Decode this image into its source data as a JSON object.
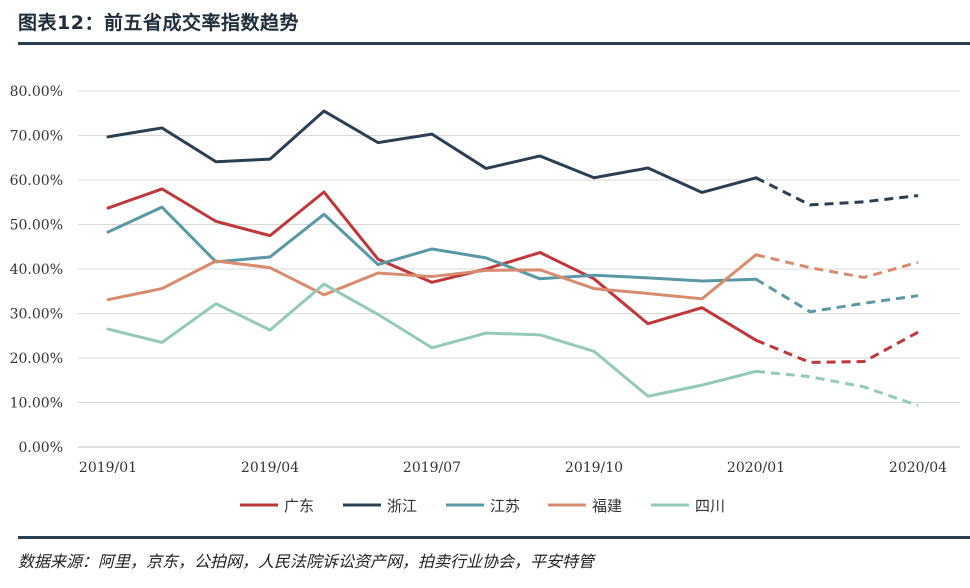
{
  "figure": {
    "title": "图表12：前五省成交率指数趋势",
    "source": "数据来源：阿里，京东，公拍网，人民法院诉讼资产网，拍卖行业协会，平安特管"
  },
  "colors": {
    "rule": "#2b3f52",
    "grid": "#d9d9d9"
  },
  "chart_data": {
    "type": "line",
    "ylim": [
      0,
      0.8
    ],
    "y_ticks": [
      "0.00%",
      "10.00%",
      "20.00%",
      "30.00%",
      "40.00%",
      "50.00%",
      "60.00%",
      "70.00%",
      "80.00%"
    ],
    "x": [
      "2019/01",
      "2019/02",
      "2019/03",
      "2019/04",
      "2019/05",
      "2019/06",
      "2019/07",
      "2019/08",
      "2019/09",
      "2019/10",
      "2019/11",
      "2019/12",
      "2020/01",
      "2020/02",
      "2020/03",
      "2020/04"
    ],
    "x_tick_labels": [
      "2019/01",
      "2019/04",
      "2019/07",
      "2019/10",
      "2020/01",
      "2020/04"
    ],
    "x_tick_indices": [
      0,
      3,
      6,
      9,
      12,
      15
    ],
    "dashed_from_index": 12,
    "grid": true,
    "legend_position": "bottom",
    "series": [
      {
        "name": "广东",
        "color": "#c0373a",
        "values": [
          0.537,
          0.58,
          0.507,
          0.475,
          0.573,
          0.422,
          0.37,
          0.4,
          0.437,
          0.378,
          0.277,
          0.313,
          0.24,
          0.19,
          0.192,
          0.258
        ]
      },
      {
        "name": "浙江",
        "color": "#2b3f52",
        "values": [
          0.697,
          0.717,
          0.641,
          0.647,
          0.755,
          0.684,
          0.703,
          0.626,
          0.654,
          0.605,
          0.627,
          0.572,
          0.605,
          0.544,
          0.551,
          0.565
        ]
      },
      {
        "name": "江苏",
        "color": "#5b98a5",
        "values": [
          0.483,
          0.539,
          0.416,
          0.427,
          0.523,
          0.41,
          0.445,
          0.425,
          0.378,
          0.386,
          0.38,
          0.373,
          0.377,
          0.304,
          0.323,
          0.34
        ]
      },
      {
        "name": "福建",
        "color": "#d98c6d",
        "values": [
          0.331,
          0.356,
          0.418,
          0.403,
          0.342,
          0.391,
          0.383,
          0.397,
          0.398,
          0.356,
          0.345,
          0.333,
          0.432,
          0.403,
          0.381,
          0.415
        ]
      },
      {
        "name": "四川",
        "color": "#93cbb6",
        "values": [
          0.265,
          0.235,
          0.322,
          0.263,
          0.366,
          0.298,
          0.223,
          0.256,
          0.252,
          0.215,
          0.114,
          0.139,
          0.17,
          0.158,
          0.135,
          0.093
        ]
      }
    ]
  }
}
